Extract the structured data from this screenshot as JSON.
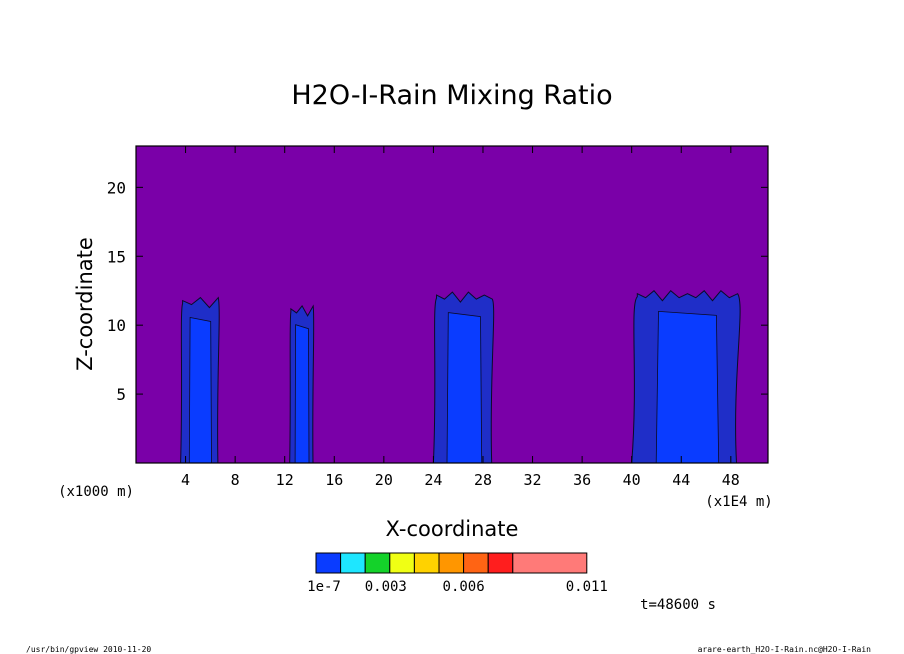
{
  "chart_data": {
    "type": "heatmap",
    "title": "H2O-I-Rain Mixing Ratio",
    "xlabel": "X-coordinate",
    "ylabel": "Z-coordinate",
    "x_unit_left": "(x1000 m)",
    "x_unit_right": "(x1E4 m)",
    "xlim": [
      0,
      51
    ],
    "ylim": [
      0,
      23
    ],
    "x_ticks": [
      4,
      8,
      12,
      16,
      20,
      24,
      28,
      32,
      36,
      40,
      44,
      48
    ],
    "y_ticks": [
      5,
      10,
      15,
      20
    ],
    "background_color": "#7a00a8",
    "colorbar": {
      "colors": [
        "#0a3cff",
        "#1ee6ff",
        "#14d22a",
        "#f0ff14",
        "#ffd200",
        "#ff9600",
        "#ff6414",
        "#ff1e1e",
        "#ff7a78"
      ],
      "labels": [
        "1e-7",
        "0.003",
        "0.006",
        "0.011"
      ]
    },
    "rain_columns": [
      {
        "x_start": 3.6,
        "x_end": 6.8,
        "top": 12.0
      },
      {
        "x_start": 12.4,
        "x_end": 14.4,
        "top": 11.4
      },
      {
        "x_start": 24.0,
        "x_end": 29.0,
        "top": 12.4
      },
      {
        "x_start": 40.0,
        "x_end": 49.0,
        "top": 12.5
      }
    ],
    "time_label": "t=48600 s"
  },
  "footer": {
    "left": "/usr/bin/gpview  2010-11-20",
    "right": "arare-earth_H2O-I-Rain.nc@H2O-I-Rain"
  }
}
